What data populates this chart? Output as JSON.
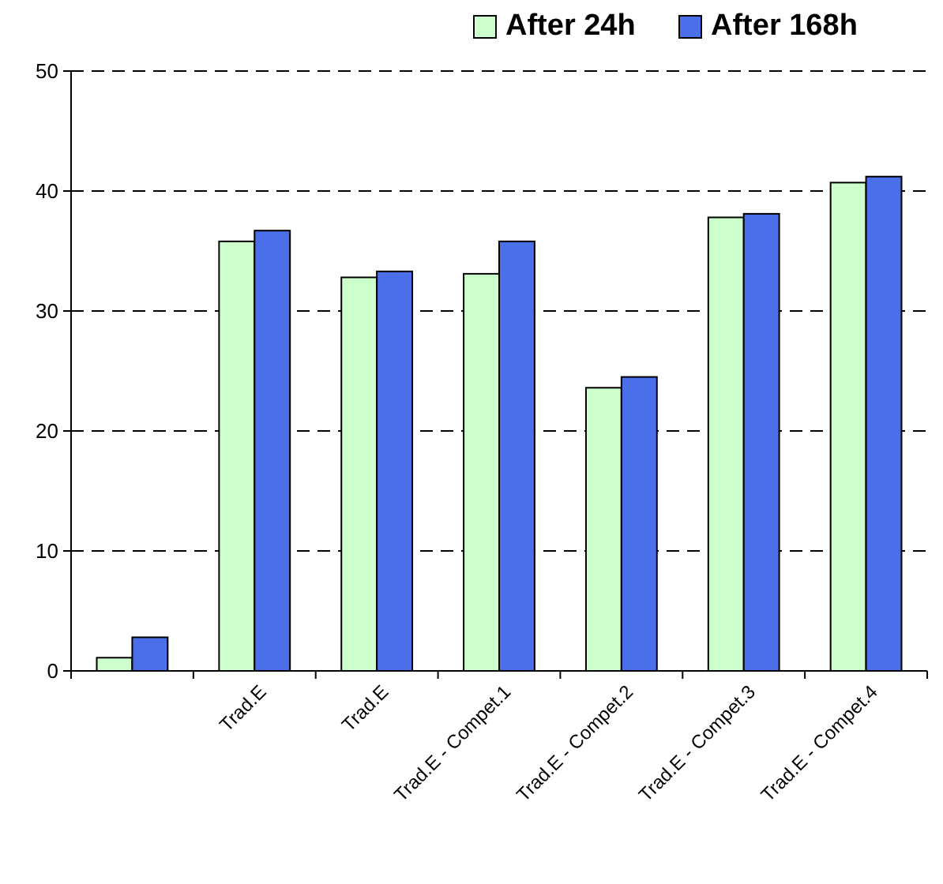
{
  "chart_data": {
    "type": "bar",
    "categories": [
      null,
      "Trad.E",
      "Trad.E",
      "Trad.E - Compet.1",
      "Trad.E - Compet.2",
      "Trad.E - Compet.3",
      "Trad.E - Compet.4"
    ],
    "series": [
      {
        "name": "After 24h",
        "color": "#ccffcc",
        "values": [
          1.1,
          35.8,
          32.8,
          33.1,
          23.6,
          37.8,
          40.7
        ]
      },
      {
        "name": "After 168h",
        "color": "#4a6fe8",
        "values": [
          2.8,
          36.7,
          33.3,
          35.8,
          24.5,
          38.1,
          41.2
        ]
      }
    ],
    "ylim": [
      0,
      50
    ],
    "yticks": [
      0,
      10,
      20,
      30,
      40,
      50
    ],
    "grid": "y",
    "legend": "top right"
  }
}
